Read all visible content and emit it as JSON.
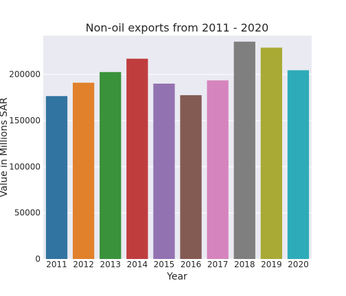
{
  "chart_data": {
    "type": "bar",
    "title": "Non-oil exports from 2011 - 2020",
    "xlabel": "Year",
    "ylabel": "Value in Millions SAR",
    "categories": [
      "2011",
      "2012",
      "2013",
      "2014",
      "2015",
      "2016",
      "2017",
      "2018",
      "2019",
      "2020"
    ],
    "values": [
      176500,
      191000,
      202500,
      217000,
      190000,
      177500,
      193500,
      235500,
      229000,
      204500
    ],
    "colors": [
      "#3274a1",
      "#e1812c",
      "#3a923a",
      "#c03d3e",
      "#9372b2",
      "#845b53",
      "#d684bd",
      "#7f7f7f",
      "#a9aa35",
      "#2eabb8"
    ],
    "ylim": [
      0,
      242000
    ],
    "yticks": [
      0,
      50000,
      100000,
      150000,
      200000
    ],
    "ytick_labels": [
      "0",
      "50000",
      "100000",
      "150000",
      "200000"
    ],
    "grid": true,
    "legend": "none",
    "background": "#eaeaf2"
  }
}
